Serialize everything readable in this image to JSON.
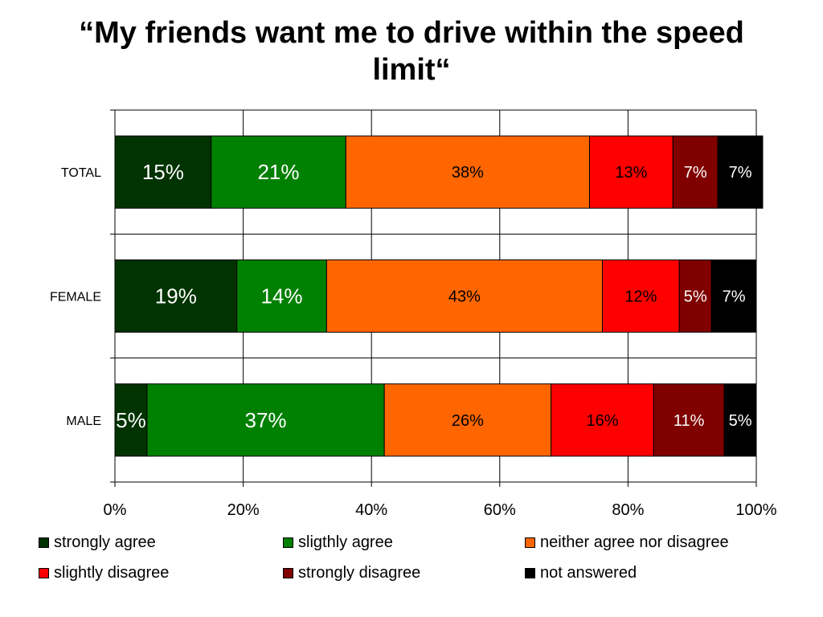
{
  "chart_data": {
    "type": "bar",
    "orientation": "horizontal",
    "stacked": "percent",
    "title": "“My friends want me to drive within the speed limit“",
    "categories": [
      "TOTAL",
      "FEMALE",
      "MALE"
    ],
    "series": [
      {
        "name": "strongly agree",
        "color": "#003300",
        "values": [
          15,
          19,
          5
        ],
        "labels": [
          "15%",
          "19%",
          "5%"
        ]
      },
      {
        "name": "sligthly agree",
        "color": "#008000",
        "values": [
          21,
          14,
          37
        ],
        "labels": [
          "21%",
          "14%",
          "37%"
        ]
      },
      {
        "name": "neither agree nor disagree",
        "color": "#ff6600",
        "values": [
          38,
          43,
          26
        ],
        "labels": [
          "38%",
          "43%",
          "26%"
        ]
      },
      {
        "name": "slightly disagree",
        "color": "#ff0000",
        "values": [
          13,
          12,
          16
        ],
        "labels": [
          "13%",
          "12%",
          "16%"
        ]
      },
      {
        "name": "strongly disagree",
        "color": "#800000",
        "values": [
          7,
          5,
          11
        ],
        "labels": [
          "7%",
          "5%",
          "11%"
        ]
      },
      {
        "name": "not answered",
        "color": "#000000",
        "values": [
          7,
          7,
          5
        ],
        "labels": [
          "7%",
          "7%",
          "5%"
        ]
      }
    ],
    "label_colors": [
      "#ffffff",
      "#ffffff",
      "#000000",
      "#000000",
      "#ffffff",
      "#ffffff"
    ],
    "xlim": [
      0,
      100
    ],
    "xticks": [
      "0%",
      "20%",
      "40%",
      "60%",
      "80%",
      "100%"
    ],
    "grid": true,
    "legend_position": "bottom"
  }
}
